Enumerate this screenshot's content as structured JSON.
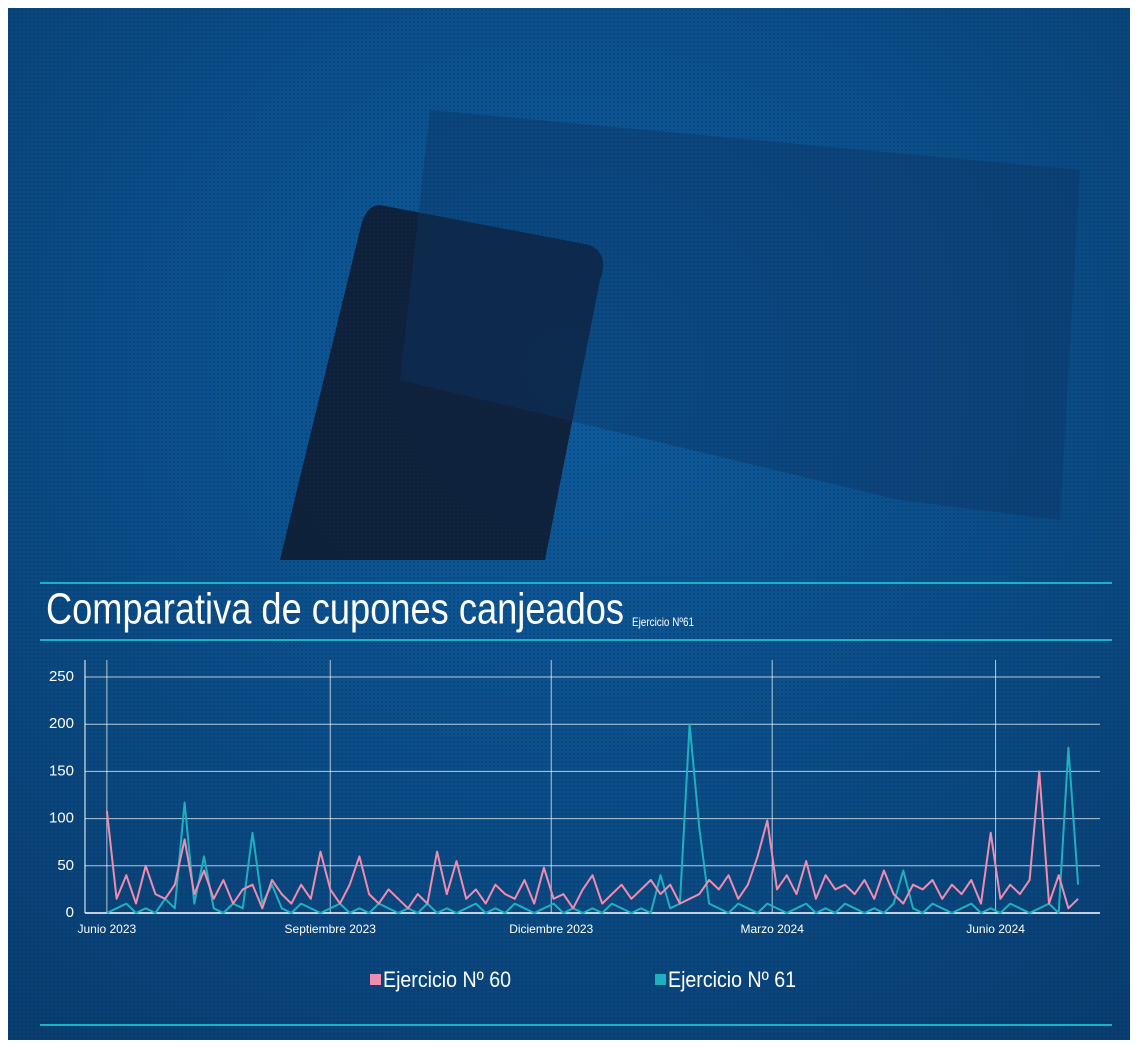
{
  "chart_data": {
    "type": "line",
    "title": "Comparativa de cupones canjeados",
    "subtitle": "Ejercicio Nº61",
    "x": [
      0,
      4,
      8,
      12,
      16,
      20,
      24,
      28,
      32,
      36,
      40,
      44,
      48,
      52,
      56,
      60,
      64,
      68,
      72,
      76,
      80,
      84,
      88,
      92,
      96,
      100,
      104,
      108,
      112,
      116,
      120,
      124,
      128,
      132,
      136,
      140,
      144,
      148,
      152,
      156,
      160,
      164,
      168,
      172,
      176,
      180,
      184,
      188,
      192,
      196,
      200,
      204,
      208,
      212,
      216,
      220,
      224,
      228,
      232,
      236,
      240,
      244,
      248,
      252,
      256,
      260,
      264,
      268,
      272,
      276,
      280,
      284,
      288,
      292,
      296,
      300,
      304,
      308,
      312,
      316,
      320,
      324,
      328,
      332,
      336,
      340,
      344,
      348,
      352,
      356,
      360,
      364,
      368,
      372,
      376,
      380,
      384,
      388,
      392,
      396,
      400
    ],
    "xlim": [
      -9,
      409
    ],
    "xticks": [
      {
        "value": 0,
        "label": "Junio 2023"
      },
      {
        "value": 92,
        "label": "Septiembre 2023"
      },
      {
        "value": 183,
        "label": "Diciembre 2023"
      },
      {
        "value": 274,
        "label": "Marzo 2024"
      },
      {
        "value": 366,
        "label": "Junio 2024"
      }
    ],
    "ylim": [
      0,
      268
    ],
    "yticks": [
      0,
      50,
      100,
      150,
      200,
      250
    ],
    "grid": true,
    "series": [
      {
        "name": "Ejercicio Nº 60",
        "color": "#f08cb0",
        "values": [
          108,
          15,
          40,
          10,
          50,
          20,
          15,
          30,
          78,
          20,
          45,
          15,
          35,
          10,
          25,
          30,
          5,
          35,
          20,
          10,
          30,
          15,
          65,
          25,
          10,
          30,
          60,
          20,
          10,
          25,
          15,
          5,
          20,
          10,
          65,
          20,
          55,
          15,
          25,
          10,
          30,
          20,
          15,
          35,
          10,
          48,
          15,
          20,
          5,
          25,
          40,
          10,
          20,
          30,
          15,
          25,
          35,
          20,
          30,
          10,
          15,
          20,
          35,
          25,
          40,
          15,
          30,
          60,
          98,
          25,
          40,
          20,
          55,
          15,
          40,
          25,
          30,
          20,
          35,
          15,
          45,
          20,
          10,
          30,
          25,
          35,
          15,
          30,
          20,
          35,
          10,
          85,
          15,
          30,
          20,
          35,
          150,
          10,
          40,
          5,
          15
        ]
      },
      {
        "name": "Ejercicio Nº 61",
        "color": "#1fb0c0",
        "values": [
          0,
          5,
          10,
          0,
          5,
          0,
          15,
          5,
          117,
          10,
          60,
          5,
          0,
          10,
          5,
          85,
          10,
          30,
          5,
          0,
          10,
          5,
          0,
          5,
          10,
          0,
          5,
          0,
          10,
          5,
          0,
          5,
          0,
          10,
          0,
          5,
          0,
          5,
          10,
          0,
          5,
          0,
          10,
          5,
          0,
          5,
          10,
          0,
          5,
          0,
          5,
          0,
          10,
          5,
          0,
          5,
          0,
          40,
          5,
          10,
          200,
          90,
          10,
          5,
          0,
          10,
          5,
          0,
          10,
          5,
          0,
          5,
          10,
          0,
          5,
          0,
          10,
          5,
          0,
          5,
          0,
          10,
          45,
          5,
          0,
          10,
          5,
          0,
          5,
          10,
          0,
          5,
          0,
          10,
          5,
          0,
          5,
          10,
          0,
          175,
          30
        ]
      }
    ],
    "legend": "bottom"
  }
}
